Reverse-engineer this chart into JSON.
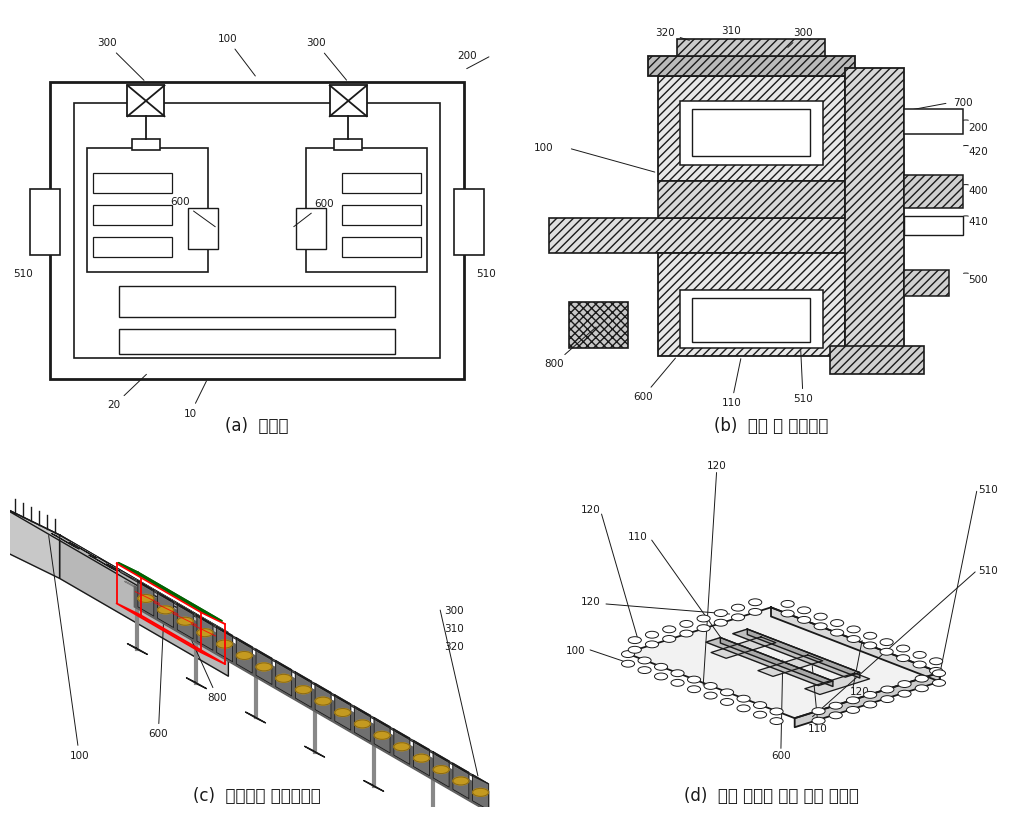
{
  "background_color": "#ffffff",
  "subfig_labels": [
    "(a)  정면도",
    "(b)  추진 및 부상모듈",
    "(c)  자기부상 선형베어링",
    "(d)  안내 일체형 선형 추진 전동기"
  ],
  "line_color": "#1a1a1a",
  "label_fontsize": 7.5,
  "caption_fontsize": 12,
  "hatch_color": "#444444"
}
